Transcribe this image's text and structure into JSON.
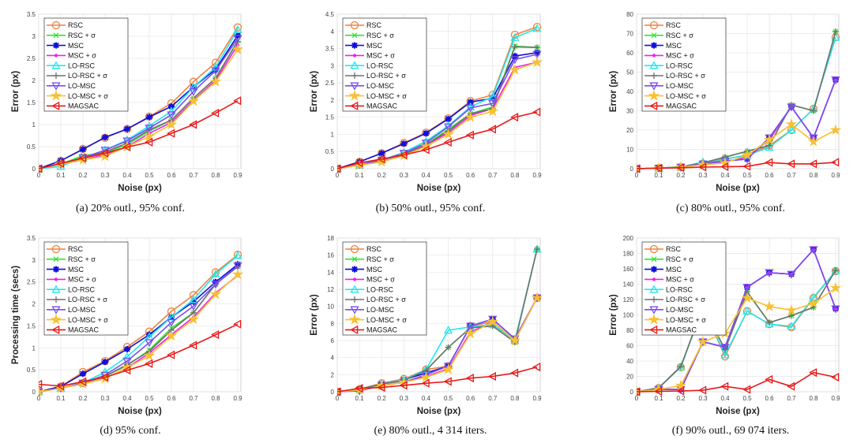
{
  "series_style": [
    {
      "color": "#f0813f",
      "marker": "circle"
    },
    {
      "color": "#2ee82e",
      "marker": "x"
    },
    {
      "color": "#1010d8",
      "marker": "asterisk"
    },
    {
      "color": "#ee22ee",
      "marker": "dot"
    },
    {
      "color": "#22e8ee",
      "marker": "triangle-up"
    },
    {
      "color": "#707070",
      "marker": "plus"
    },
    {
      "color": "#7a4ef0",
      "marker": "triangle-down"
    },
    {
      "color": "#f8c030",
      "marker": "star"
    },
    {
      "color": "#e81818",
      "marker": "triangle-left"
    }
  ],
  "chart_data": [
    {
      "type": "line",
      "caption": "(a) 20% outl., 95% conf.",
      "xlabel": "Noise (px)",
      "ylabel": "Error (px)",
      "xlim": [
        0,
        0.9
      ],
      "ylim": [
        0,
        3.5
      ],
      "grid": true,
      "legend": "top-left",
      "xticks": [
        "0",
        "0.1",
        "0.2",
        "0.3",
        "0.4",
        "0.5",
        "0.6",
        "0.7",
        "0.8",
        "0.9"
      ],
      "yticks": [
        "0",
        "0.5",
        "1",
        "1.5",
        "2",
        "2.5",
        "3",
        "3.5"
      ],
      "x": [
        0,
        0.1,
        0.2,
        0.3,
        0.4,
        0.5,
        0.6,
        0.7,
        0.8,
        0.9
      ],
      "series": [
        {
          "name": "RSC",
          "values": [
            0,
            0.18,
            0.45,
            0.7,
            0.9,
            1.18,
            1.48,
            1.97,
            2.4,
            3.2
          ]
        },
        {
          "name": "RSC + σ",
          "values": [
            0,
            0.1,
            0.3,
            0.35,
            0.55,
            0.85,
            1.1,
            1.6,
            2.05,
            2.9
          ]
        },
        {
          "name": "MSC",
          "values": [
            0,
            0.18,
            0.44,
            0.71,
            0.9,
            1.17,
            1.41,
            1.85,
            2.25,
            3.02
          ]
        },
        {
          "name": "MSC + σ",
          "values": [
            0,
            0.1,
            0.2,
            0.32,
            0.5,
            0.8,
            1.05,
            1.55,
            2.0,
            2.8
          ]
        },
        {
          "name": "LO-RSC",
          "values": [
            0,
            0.05,
            0.25,
            0.42,
            0.65,
            0.97,
            1.3,
            1.85,
            2.3,
            3.15
          ]
        },
        {
          "name": "LO-RSC + σ",
          "values": [
            0,
            0.1,
            0.25,
            0.38,
            0.58,
            0.88,
            1.1,
            1.6,
            2.05,
            2.88
          ]
        },
        {
          "name": "LO-MSC",
          "values": [
            0,
            0.1,
            0.25,
            0.42,
            0.63,
            0.92,
            1.22,
            1.75,
            2.22,
            2.95
          ]
        },
        {
          "name": "LO-MSC + σ",
          "values": [
            0,
            0.1,
            0.2,
            0.28,
            0.5,
            0.73,
            1.0,
            1.53,
            1.97,
            2.7
          ]
        },
        {
          "name": "MAGSAC",
          "values": [
            0,
            0.12,
            0.24,
            0.35,
            0.49,
            0.6,
            0.8,
            1.0,
            1.26,
            1.54
          ]
        }
      ]
    },
    {
      "type": "line",
      "caption": "(b) 50% outl., 95% conf.",
      "xlabel": "Noise (px)",
      "ylabel": "Error (px)",
      "xlim": [
        0,
        0.9
      ],
      "ylim": [
        0,
        4.5
      ],
      "grid": true,
      "legend": "top-left",
      "xticks": [
        "0",
        "0.1",
        "0.2",
        "0.3",
        "0.4",
        "0.5",
        "0.6",
        "0.7",
        "0.8",
        "0.9"
      ],
      "yticks": [
        "0",
        "0.5",
        "1",
        "1.5",
        "2",
        "2.5",
        "3",
        "3.5",
        "4",
        "4.5"
      ],
      "x": [
        0,
        0.1,
        0.2,
        0.3,
        0.4,
        0.5,
        0.6,
        0.7,
        0.8,
        0.9
      ],
      "series": [
        {
          "name": "RSC",
          "values": [
            0,
            0.2,
            0.45,
            0.75,
            1.05,
            1.47,
            1.97,
            2.15,
            3.9,
            4.13
          ]
        },
        {
          "name": "RSC + σ",
          "values": [
            0,
            0.1,
            0.25,
            0.42,
            0.7,
            1.15,
            1.6,
            1.8,
            3.57,
            3.53
          ]
        },
        {
          "name": "MSC",
          "values": [
            0,
            0.2,
            0.45,
            0.73,
            1.03,
            1.45,
            1.94,
            2.05,
            3.28,
            3.38
          ]
        },
        {
          "name": "MSC + σ",
          "values": [
            0,
            0.1,
            0.2,
            0.38,
            0.68,
            1.05,
            1.55,
            1.75,
            2.95,
            3.1
          ]
        },
        {
          "name": "LO-RSC",
          "values": [
            0,
            0.1,
            0.25,
            0.48,
            0.8,
            1.25,
            1.8,
            2.1,
            3.82,
            4.08
          ]
        },
        {
          "name": "LO-RSC + σ",
          "values": [
            0,
            0.12,
            0.25,
            0.42,
            0.7,
            1.1,
            1.6,
            1.75,
            3.55,
            3.53
          ]
        },
        {
          "name": "LO-MSC",
          "values": [
            0,
            0.12,
            0.25,
            0.45,
            0.75,
            1.22,
            1.77,
            1.9,
            3.18,
            3.33
          ]
        },
        {
          "name": "LO-MSC + σ",
          "values": [
            0,
            0.1,
            0.2,
            0.38,
            0.65,
            1.0,
            1.5,
            1.67,
            2.88,
            3.1
          ]
        },
        {
          "name": "MAGSAC",
          "values": [
            0,
            0.17,
            0.28,
            0.4,
            0.55,
            0.77,
            0.98,
            1.15,
            1.5,
            1.65
          ]
        }
      ]
    },
    {
      "type": "line",
      "caption": "(c) 80% outl., 95% conf.",
      "xlabel": "Noise (px)",
      "ylabel": "Error (px)",
      "xlim": [
        0,
        0.9
      ],
      "ylim": [
        0,
        80
      ],
      "grid": true,
      "legend": "top-left",
      "xticks": [
        "0",
        "0.1",
        "0.2",
        "0.3",
        "0.4",
        "0.5",
        "0.6",
        "0.7",
        "0.8",
        "0.9"
      ],
      "yticks": [
        "0",
        "10",
        "20",
        "30",
        "40",
        "50",
        "60",
        "70",
        "80"
      ],
      "x": [
        0,
        0.1,
        0.2,
        0.3,
        0.4,
        0.5,
        0.6,
        0.7,
        0.8,
        0.9
      ],
      "series": [
        {
          "name": "RSC",
          "values": [
            0,
            0.3,
            0.8,
            2.5,
            5,
            7,
            12,
            20,
            31,
            68
          ]
        },
        {
          "name": "RSC + σ",
          "values": [
            0,
            0.3,
            1,
            3,
            6,
            9,
            12,
            33,
            30,
            71
          ]
        },
        {
          "name": "MSC",
          "values": [
            0,
            0.3,
            0.8,
            2.5,
            4,
            5,
            16,
            32,
            16,
            46
          ]
        },
        {
          "name": "MSC + σ",
          "values": [
            0,
            0.3,
            0.8,
            2,
            3.5,
            6,
            15,
            32,
            16,
            46
          ]
        },
        {
          "name": "LO-RSC",
          "values": [
            0,
            0.3,
            0.8,
            3.5,
            5,
            7,
            11,
            20,
            31,
            68
          ]
        },
        {
          "name": "LO-RSC + σ",
          "values": [
            0,
            0.3,
            1,
            3,
            6,
            9,
            12,
            33,
            30,
            71
          ]
        },
        {
          "name": "LO-MSC",
          "values": [
            0,
            0.3,
            0.8,
            2.5,
            4,
            5,
            16,
            32,
            16,
            46
          ]
        },
        {
          "name": "LO-MSC + σ",
          "values": [
            0,
            0.3,
            0.8,
            2,
            3,
            7,
            15,
            23,
            14,
            20
          ]
        },
        {
          "name": "MAGSAC",
          "values": [
            0,
            0.3,
            0.5,
            0.8,
            1,
            1.2,
            3.2,
            2.5,
            2.5,
            3.3
          ]
        }
      ]
    },
    {
      "type": "line",
      "caption": "(d) 95% conf.",
      "xlabel": "Noise (px)",
      "ylabel": "Processing time (secs)",
      "xlim": [
        0,
        0.9
      ],
      "ylim": [
        0,
        3.5
      ],
      "grid": true,
      "legend": "top-left",
      "xticks": [
        "0",
        "0.1",
        "0.2",
        "0.3",
        "0.4",
        "0.5",
        "0.6",
        "0.7",
        "0.8",
        "0.9"
      ],
      "yticks": [
        "0",
        "0.5",
        "1",
        "1.5",
        "2",
        "2.5",
        "3",
        "3.5"
      ],
      "x": [
        0,
        0.1,
        0.2,
        0.3,
        0.4,
        0.5,
        0.6,
        0.7,
        0.8,
        0.9
      ],
      "series": [
        {
          "name": "RSC",
          "values": [
            0,
            0.12,
            0.45,
            0.7,
            1.02,
            1.37,
            1.83,
            2.2,
            2.72,
            3.12
          ]
        },
        {
          "name": "RSC + σ",
          "values": [
            0,
            0.08,
            0.2,
            0.35,
            0.6,
            0.95,
            1.45,
            1.8,
            2.45,
            2.85
          ]
        },
        {
          "name": "MSC",
          "values": [
            0,
            0.12,
            0.41,
            0.68,
            0.97,
            1.3,
            1.7,
            2.05,
            2.5,
            2.9
          ]
        },
        {
          "name": "MSC + σ",
          "values": [
            0,
            0.08,
            0.18,
            0.3,
            0.55,
            0.88,
            1.3,
            1.7,
            2.25,
            2.65
          ]
        },
        {
          "name": "LO-RSC",
          "values": [
            0,
            0.08,
            0.2,
            0.45,
            0.8,
            1.25,
            1.7,
            2.1,
            2.68,
            3.1
          ]
        },
        {
          "name": "LO-RSC + σ",
          "values": [
            0,
            0.08,
            0.2,
            0.35,
            0.62,
            0.92,
            1.4,
            1.8,
            2.45,
            2.85
          ]
        },
        {
          "name": "LO-MSC",
          "values": [
            0,
            0.08,
            0.2,
            0.38,
            0.7,
            1.12,
            1.58,
            1.95,
            2.45,
            2.87
          ]
        },
        {
          "name": "LO-MSC + σ",
          "values": [
            0,
            0.08,
            0.18,
            0.3,
            0.55,
            0.82,
            1.27,
            1.65,
            2.22,
            2.67
          ]
        },
        {
          "name": "MAGSAC",
          "values": [
            0.17,
            0.13,
            0.23,
            0.33,
            0.49,
            0.64,
            0.84,
            1.06,
            1.3,
            1.54
          ]
        }
      ]
    },
    {
      "type": "line",
      "caption": "(e) 80% outl., 4 314 iters.",
      "xlabel": "Noise (px)",
      "ylabel": "Error (px)",
      "xlim": [
        0,
        0.9
      ],
      "ylim": [
        0,
        18
      ],
      "grid": true,
      "legend": "top-left",
      "xticks": [
        "0",
        "0.1",
        "0.2",
        "0.3",
        "0.4",
        "0.5",
        "0.6",
        "0.7",
        "0.8",
        "0.9"
      ],
      "yticks": [
        "0",
        "2",
        "4",
        "6",
        "8",
        "10",
        "12",
        "14",
        "16",
        "18"
      ],
      "x": [
        0,
        0.1,
        0.2,
        0.3,
        0.4,
        0.5,
        0.6,
        0.7,
        0.8,
        0.9
      ],
      "series": [
        {
          "name": "RSC",
          "values": [
            0,
            0.3,
            1,
            1.5,
            2.6,
            3,
            7.7,
            8.2,
            6,
            11
          ]
        },
        {
          "name": "RSC + σ",
          "values": [
            0,
            0.3,
            0.9,
            1.3,
            2.5,
            5.2,
            7.5,
            7.7,
            5.8,
            16.7
          ]
        },
        {
          "name": "MSC",
          "values": [
            0,
            0.3,
            0.9,
            1.4,
            2.2,
            3,
            7.7,
            8.5,
            6.2,
            11
          ]
        },
        {
          "name": "MSC + σ",
          "values": [
            0,
            0.2,
            0.7,
            1.1,
            1.8,
            2.7,
            7,
            8.2,
            6,
            11
          ]
        },
        {
          "name": "LO-RSC",
          "values": [
            0,
            0.3,
            0.9,
            1.4,
            2.6,
            7.2,
            7.6,
            7.9,
            6,
            16.7
          ]
        },
        {
          "name": "LO-RSC + σ",
          "values": [
            0,
            0.3,
            0.9,
            1.3,
            2.5,
            5.2,
            7.5,
            7.7,
            5.8,
            16.7
          ]
        },
        {
          "name": "LO-MSC",
          "values": [
            0,
            0.1,
            0.7,
            1.1,
            2.0,
            3,
            7.7,
            8.5,
            6.2,
            11
          ]
        },
        {
          "name": "LO-MSC + σ",
          "values": [
            0,
            0.2,
            0.7,
            1.1,
            1.7,
            2.6,
            6.8,
            8.2,
            6,
            11
          ]
        },
        {
          "name": "MAGSAC",
          "values": [
            0,
            0.4,
            0.5,
            0.75,
            1,
            1.2,
            1.6,
            1.8,
            2.2,
            2.9
          ]
        }
      ]
    },
    {
      "type": "line",
      "caption": "(f) 90% outl., 69 074 iters.",
      "xlabel": "Noise (px)",
      "ylabel": "Error (px)",
      "xlim": [
        0,
        0.9
      ],
      "ylim": [
        0,
        200
      ],
      "grid": true,
      "legend": "top-left",
      "xticks": [
        "0",
        "0.1",
        "0.2",
        "0.3",
        "0.4",
        "0.5",
        "0.6",
        "0.7",
        "0.8",
        "0.9"
      ],
      "yticks": [
        "0",
        "20",
        "40",
        "60",
        "80",
        "100",
        "120",
        "140",
        "160",
        "180",
        "200"
      ],
      "x": [
        0,
        0.1,
        0.2,
        0.3,
        0.4,
        0.5,
        0.6,
        0.7,
        0.8,
        0.9
      ],
      "series": [
        {
          "name": "RSC",
          "values": [
            0,
            5,
            32,
            110,
            46,
            105,
            88,
            84,
            122,
            157
          ]
        },
        {
          "name": "RSC + σ",
          "values": [
            0,
            5,
            33,
            110,
            55,
            130,
            90,
            99,
            110,
            158
          ]
        },
        {
          "name": "MSC",
          "values": [
            0,
            3,
            3,
            65,
            58,
            136,
            155,
            153,
            185,
            108
          ]
        },
        {
          "name": "MSC + σ",
          "values": [
            0,
            3,
            3,
            65,
            58,
            136,
            155,
            153,
            185,
            108
          ]
        },
        {
          "name": "LO-RSC",
          "values": [
            0,
            5,
            32,
            110,
            48,
            105,
            88,
            85,
            123,
            157
          ]
        },
        {
          "name": "LO-RSC + σ",
          "values": [
            0,
            5,
            33,
            110,
            55,
            130,
            90,
            99,
            110,
            158
          ]
        },
        {
          "name": "LO-MSC",
          "values": [
            0,
            3,
            3,
            65,
            58,
            136,
            155,
            153,
            185,
            108
          ]
        },
        {
          "name": "LO-MSC + σ",
          "values": [
            0,
            3,
            8,
            65,
            76,
            122,
            111,
            106,
            115,
            135
          ]
        },
        {
          "name": "MAGSAC",
          "values": [
            0,
            0.5,
            1,
            2,
            7,
            3,
            16,
            7,
            25,
            19
          ]
        }
      ]
    }
  ]
}
